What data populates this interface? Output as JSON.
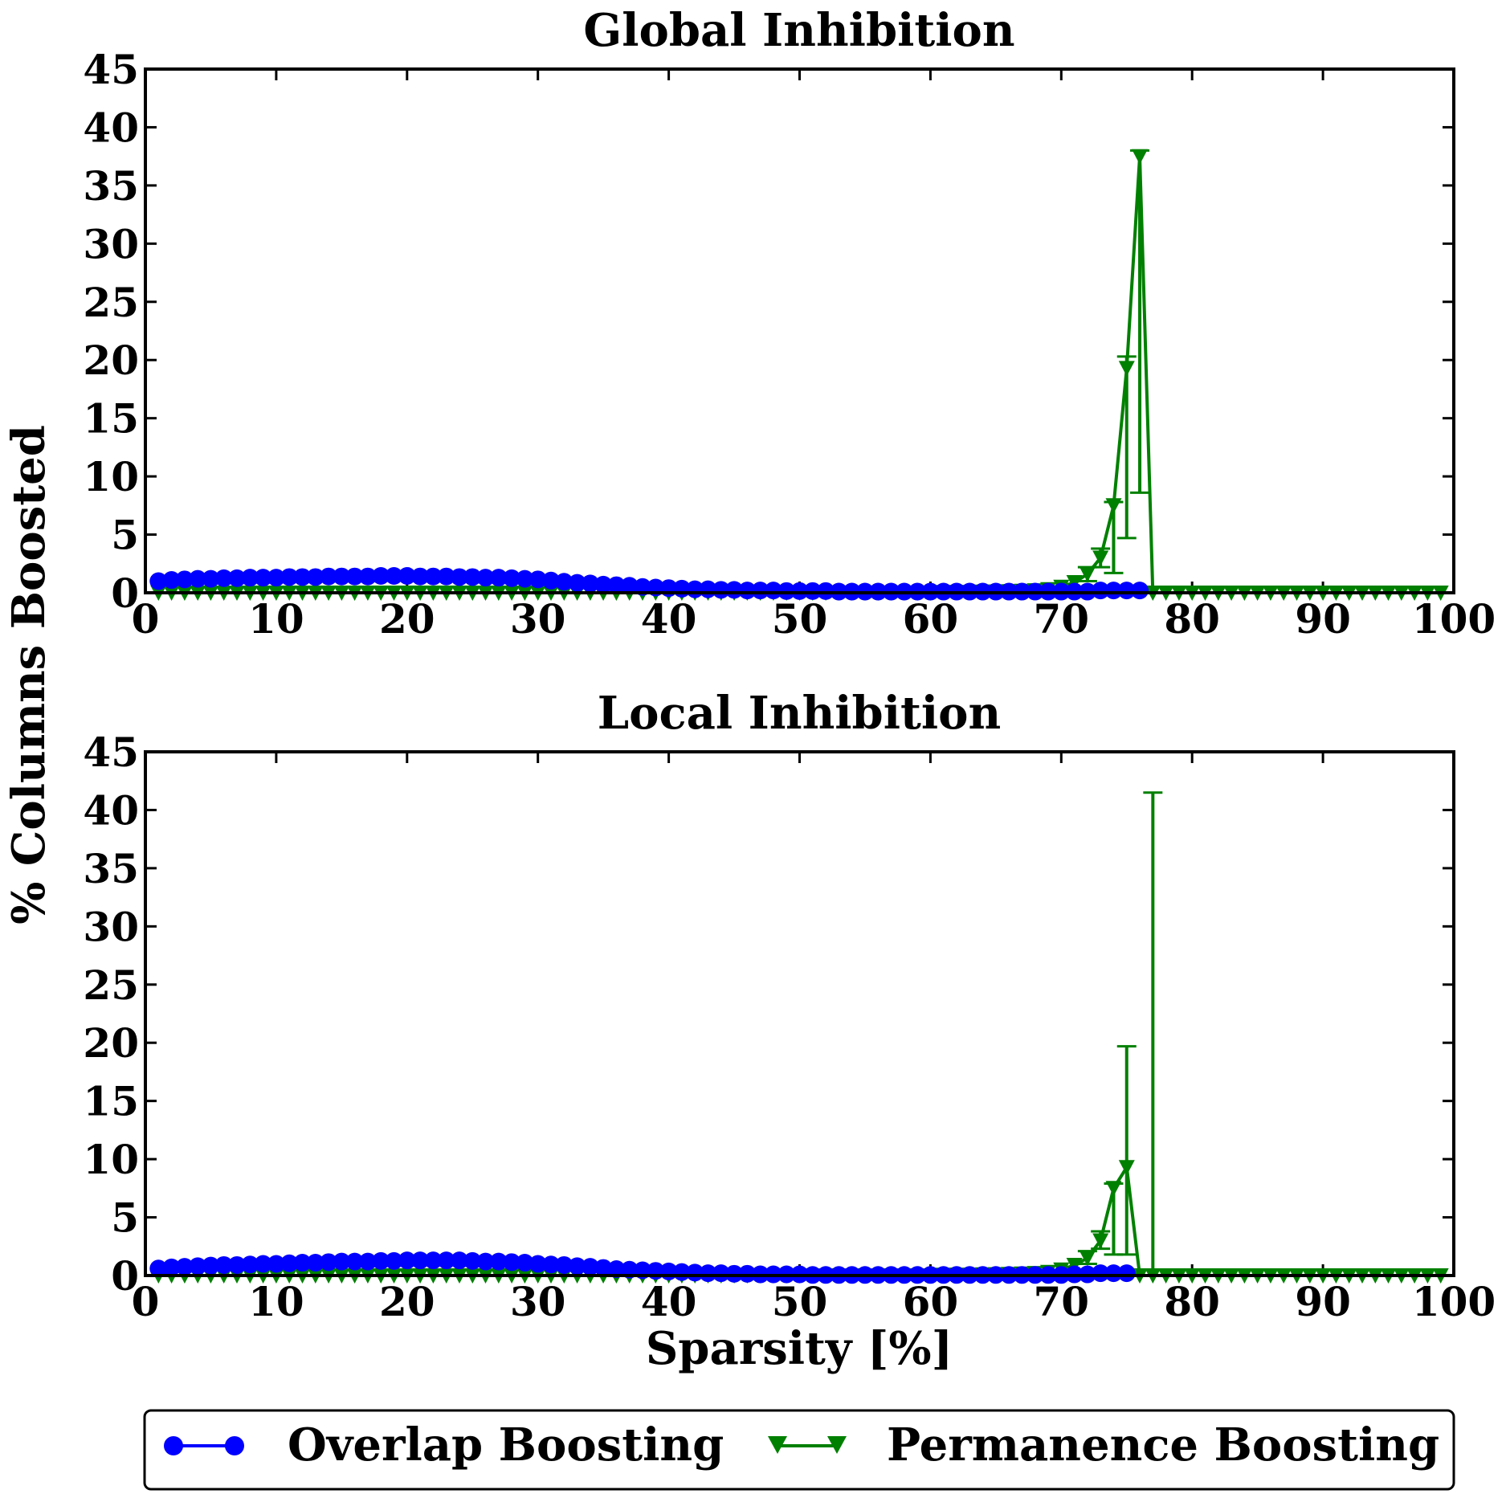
{
  "figure": {
    "ylabel": "% Columns Boosted",
    "xlabel": "Sparsity [%]"
  },
  "legend": {
    "items": [
      {
        "label": "Overlap Boosting",
        "color": "#0000ff",
        "marker": "circle"
      },
      {
        "label": "Permanence Boosting",
        "color": "#008000",
        "marker": "triangle-down"
      }
    ]
  },
  "chart_data": [
    {
      "type": "line",
      "title": "Global Inhibition",
      "xlabel": "",
      "ylabel": "% Columns Boosted",
      "xlim": [
        0,
        100
      ],
      "ylim": [
        0,
        45
      ],
      "xticks": [
        "0",
        "10",
        "20",
        "30",
        "40",
        "50",
        "60",
        "70",
        "80",
        "90",
        "100"
      ],
      "yticks": [
        "0",
        "5",
        "10",
        "15",
        "20",
        "25",
        "30",
        "35",
        "40",
        "45"
      ],
      "series": [
        {
          "name": "Overlap Boosting",
          "color": "#0000ff",
          "marker": "circle",
          "x": [
            1,
            2,
            3,
            4,
            5,
            6,
            7,
            8,
            9,
            10,
            11,
            12,
            13,
            14,
            15,
            16,
            17,
            18,
            19,
            20,
            21,
            22,
            23,
            24,
            25,
            26,
            27,
            28,
            29,
            30,
            31,
            32,
            33,
            34,
            35,
            36,
            37,
            38,
            39,
            40,
            41,
            42,
            43,
            44,
            45,
            46,
            47,
            48,
            49,
            50,
            51,
            52,
            53,
            54,
            55,
            56,
            57,
            58,
            59,
            60,
            61,
            62,
            63,
            64,
            65,
            66,
            67,
            68,
            69,
            70,
            71,
            72,
            73,
            74,
            75,
            76
          ],
          "y": [
            1.0,
            1.1,
            1.15,
            1.2,
            1.2,
            1.25,
            1.25,
            1.3,
            1.3,
            1.3,
            1.35,
            1.35,
            1.35,
            1.4,
            1.4,
            1.4,
            1.4,
            1.45,
            1.45,
            1.45,
            1.4,
            1.4,
            1.4,
            1.35,
            1.35,
            1.3,
            1.3,
            1.25,
            1.2,
            1.15,
            1.05,
            0.95,
            0.85,
            0.8,
            0.7,
            0.65,
            0.6,
            0.5,
            0.45,
            0.4,
            0.35,
            0.3,
            0.3,
            0.25,
            0.25,
            0.2,
            0.2,
            0.2,
            0.15,
            0.15,
            0.15,
            0.15,
            0.1,
            0.1,
            0.1,
            0.1,
            0.1,
            0.1,
            0.1,
            0.1,
            0.1,
            0.1,
            0.1,
            0.1,
            0.1,
            0.1,
            0.1,
            0.1,
            0.1,
            0.1,
            0.1,
            0.1,
            0.2,
            0.2,
            0.2,
            0.2
          ]
        },
        {
          "name": "Permanence Boosting",
          "color": "#008000",
          "marker": "triangle-down",
          "x": [
            1,
            2,
            3,
            4,
            5,
            6,
            7,
            8,
            9,
            10,
            11,
            12,
            13,
            14,
            15,
            16,
            17,
            18,
            19,
            20,
            21,
            22,
            23,
            24,
            25,
            26,
            27,
            28,
            29,
            30,
            31,
            32,
            33,
            34,
            35,
            36,
            37,
            38,
            39,
            40,
            41,
            42,
            43,
            44,
            45,
            46,
            47,
            48,
            49,
            50,
            51,
            52,
            53,
            54,
            55,
            56,
            57,
            58,
            59,
            60,
            61,
            62,
            63,
            64,
            65,
            66,
            67,
            68,
            69,
            70,
            71,
            72,
            73,
            74,
            75,
            76,
            77,
            78,
            79,
            80,
            81,
            82,
            83,
            84,
            85,
            86,
            87,
            88,
            89,
            90,
            91,
            92,
            93,
            94,
            95,
            96,
            97,
            98,
            99
          ],
          "y": [
            0,
            0,
            0,
            0,
            0,
            0,
            0,
            0,
            0,
            0,
            0,
            0,
            0,
            0,
            0,
            0,
            0,
            0,
            0,
            0,
            0,
            0,
            0,
            0,
            0,
            0,
            0,
            0,
            0,
            0,
            0,
            0,
            0,
            0,
            0,
            0,
            0,
            0,
            0,
            0,
            0,
            0,
            0,
            0,
            0,
            0,
            0,
            0,
            0,
            0,
            0,
            0,
            0,
            0,
            0,
            0,
            0,
            0,
            0,
            0,
            0.05,
            0.05,
            0.05,
            0.08,
            0.1,
            0.12,
            0.15,
            0.2,
            0.3,
            0.5,
            0.9,
            1.6,
            3.0,
            7.5,
            19.3,
            37.5,
            0,
            0,
            0,
            0,
            0,
            0,
            0,
            0,
            0,
            0,
            0,
            0,
            0,
            0,
            0,
            0,
            0,
            0,
            0,
            0,
            0,
            0,
            0
          ],
          "errorbars": [
            {
              "x": 72,
              "low": 1.0,
              "high": 2.2
            },
            {
              "x": 73,
              "low": 2.2,
              "high": 3.8
            },
            {
              "x": 74,
              "low": 1.7,
              "high": 7.8
            },
            {
              "x": 75,
              "low": 4.7,
              "high": 20.3
            },
            {
              "x": 76,
              "low": 8.6,
              "high": 38.0
            }
          ]
        }
      ]
    },
    {
      "type": "line",
      "title": "Local Inhibition",
      "xlabel": "Sparsity [%]",
      "ylabel": "% Columns Boosted",
      "xlim": [
        0,
        100
      ],
      "ylim": [
        0,
        45
      ],
      "xticks": [
        "0",
        "10",
        "20",
        "30",
        "40",
        "50",
        "60",
        "70",
        "80",
        "90",
        "100"
      ],
      "yticks": [
        "0",
        "5",
        "10",
        "15",
        "20",
        "25",
        "30",
        "35",
        "40",
        "45"
      ],
      "series": [
        {
          "name": "Overlap Boosting",
          "color": "#0000ff",
          "marker": "circle",
          "x": [
            1,
            2,
            3,
            4,
            5,
            6,
            7,
            8,
            9,
            10,
            11,
            12,
            13,
            14,
            15,
            16,
            17,
            18,
            19,
            20,
            21,
            22,
            23,
            24,
            25,
            26,
            27,
            28,
            29,
            30,
            31,
            32,
            33,
            34,
            35,
            36,
            37,
            38,
            39,
            40,
            41,
            42,
            43,
            44,
            45,
            46,
            47,
            48,
            49,
            50,
            51,
            52,
            53,
            54,
            55,
            56,
            57,
            58,
            59,
            60,
            61,
            62,
            63,
            64,
            65,
            66,
            67,
            68,
            69,
            70,
            71,
            72,
            73,
            74,
            75
          ],
          "y": [
            0.6,
            0.7,
            0.75,
            0.8,
            0.85,
            0.9,
            0.9,
            0.95,
            1.0,
            1.0,
            1.05,
            1.1,
            1.1,
            1.15,
            1.2,
            1.2,
            1.2,
            1.25,
            1.25,
            1.3,
            1.3,
            1.3,
            1.3,
            1.3,
            1.25,
            1.2,
            1.2,
            1.15,
            1.1,
            1.0,
            0.95,
            0.9,
            0.8,
            0.75,
            0.65,
            0.55,
            0.5,
            0.45,
            0.4,
            0.35,
            0.3,
            0.25,
            0.2,
            0.2,
            0.15,
            0.15,
            0.1,
            0.1,
            0.1,
            0.1,
            0.05,
            0.05,
            0.05,
            0.05,
            0.05,
            0.05,
            0.05,
            0.05,
            0.05,
            0.05,
            0.05,
            0.05,
            0.05,
            0.05,
            0.05,
            0.05,
            0.05,
            0.05,
            0.05,
            0.05,
            0.1,
            0.1,
            0.2,
            0.2,
            0.2
          ]
        },
        {
          "name": "Permanence Boosting",
          "color": "#008000",
          "marker": "triangle-down",
          "x": [
            1,
            2,
            3,
            4,
            5,
            6,
            7,
            8,
            9,
            10,
            11,
            12,
            13,
            14,
            15,
            16,
            17,
            18,
            19,
            20,
            21,
            22,
            23,
            24,
            25,
            26,
            27,
            28,
            29,
            30,
            31,
            32,
            33,
            34,
            35,
            36,
            37,
            38,
            39,
            40,
            41,
            42,
            43,
            44,
            45,
            46,
            47,
            48,
            49,
            50,
            51,
            52,
            53,
            54,
            55,
            56,
            57,
            58,
            59,
            60,
            61,
            62,
            63,
            64,
            65,
            66,
            67,
            68,
            69,
            70,
            71,
            72,
            73,
            74,
            75,
            76,
            77,
            78,
            79,
            80,
            81,
            82,
            83,
            84,
            85,
            86,
            87,
            88,
            89,
            90,
            91,
            92,
            93,
            94,
            95,
            96,
            97,
            98,
            99
          ],
          "y": [
            0,
            0,
            0,
            0,
            0,
            0,
            0,
            0,
            0,
            0,
            0,
            0,
            0,
            0,
            0,
            0,
            0,
            0,
            0,
            0,
            0,
            0,
            0,
            0,
            0,
            0,
            0,
            0,
            0,
            0,
            0,
            0,
            0,
            0,
            0,
            0,
            0,
            0,
            0,
            0,
            0,
            0,
            0,
            0,
            0,
            0,
            0,
            0,
            0,
            0,
            0,
            0,
            0,
            0,
            0,
            0,
            0,
            0,
            0,
            0,
            0.05,
            0.05,
            0.05,
            0.08,
            0.1,
            0.12,
            0.15,
            0.2,
            0.3,
            0.5,
            0.9,
            1.5,
            3.0,
            7.5,
            9.3,
            0,
            0,
            0,
            0,
            0,
            0,
            0,
            0,
            0,
            0,
            0,
            0,
            0,
            0,
            0,
            0,
            0,
            0,
            0,
            0,
            0,
            0,
            0,
            0
          ],
          "errorbars": [
            {
              "x": 72,
              "low": 1.0,
              "high": 2.1
            },
            {
              "x": 73,
              "low": 2.3,
              "high": 3.8
            },
            {
              "x": 74,
              "low": 1.8,
              "high": 7.9
            },
            {
              "x": 75,
              "low": 1.8,
              "high": 19.7
            },
            {
              "x": 77,
              "low": 0,
              "high": 41.5
            }
          ]
        }
      ]
    }
  ]
}
